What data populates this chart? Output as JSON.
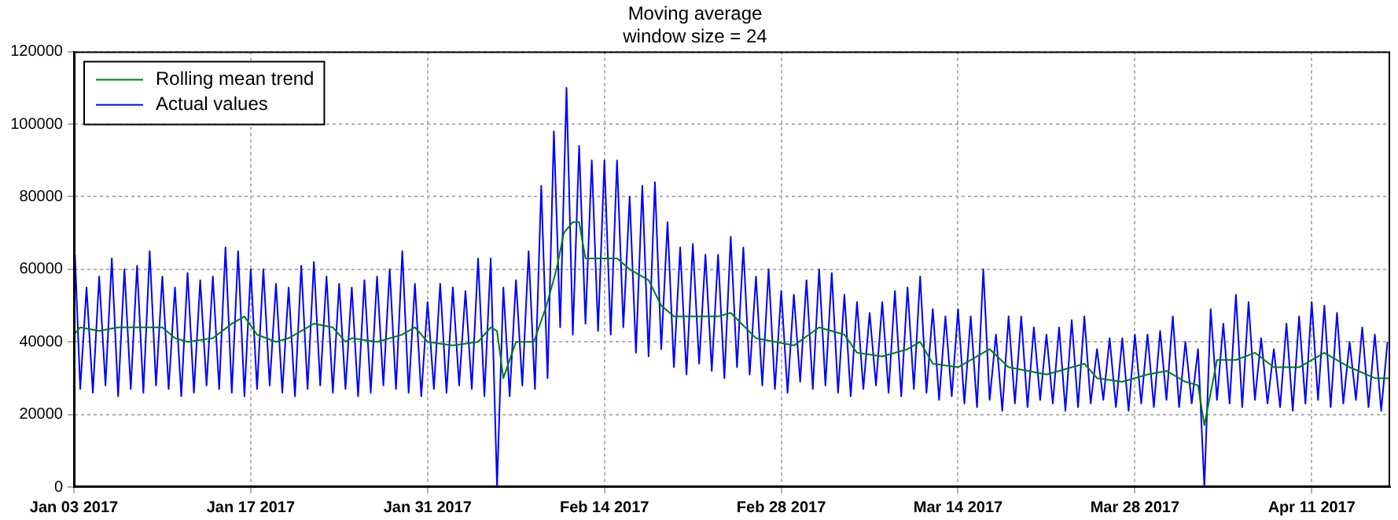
{
  "chart_data": {
    "type": "line",
    "title": "Moving average",
    "subtitle": "window size = 24",
    "xlim": [
      "2017-01-03",
      "2017-04-17T05:00"
    ],
    "xticks": [
      {
        "value": "2017-01-03",
        "label": "Jan 03 2017"
      },
      {
        "value": "2017-01-17",
        "label": "Jan 17 2017"
      },
      {
        "value": "2017-01-31",
        "label": "Jan 31 2017"
      },
      {
        "value": "2017-02-14",
        "label": "Feb 14 2017"
      },
      {
        "value": "2017-02-28",
        "label": "Feb 28 2017"
      },
      {
        "value": "2017-03-14",
        "label": "Mar 14 2017"
      },
      {
        "value": "2017-03-28",
        "label": "Mar 28 2017"
      },
      {
        "value": "2017-04-11",
        "label": "Apr 11 2017"
      }
    ],
    "ylim": [
      0,
      120000
    ],
    "yticks": [
      0,
      20000,
      40000,
      60000,
      80000,
      100000,
      120000
    ],
    "grid": true,
    "legend": "top left",
    "series": [
      {
        "name": "Rolling mean trend",
        "color": "#008000",
        "x": [
          "2017-01-03",
          "2017-01-03T12:00",
          "2017-01-05",
          "2017-01-06T12:00",
          "2017-01-08",
          "2017-01-10",
          "2017-01-11",
          "2017-01-12",
          "2017-01-14",
          "2017-01-15T12:00",
          "2017-01-16T12:00",
          "2017-01-17T12:00",
          "2017-01-19",
          "2017-01-20",
          "2017-01-22",
          "2017-01-23T12:00",
          "2017-01-24T12:00",
          "2017-01-25",
          "2017-01-27",
          "2017-01-29",
          "2017-01-30",
          "2017-01-31",
          "2017-02-02",
          "2017-02-04",
          "2017-02-05",
          "2017-02-05T12:00",
          "2017-02-06",
          "2017-02-07",
          "2017-02-08T10:00",
          "2017-02-09T10:00",
          "2017-02-10T05:00",
          "2017-02-10T19:00",
          "2017-02-11T12:00",
          "2017-02-12",
          "2017-02-12T12:00",
          "2017-02-15",
          "2017-02-16",
          "2017-02-17T12:00",
          "2017-02-18T12:00",
          "2017-02-19T12:00",
          "2017-02-23",
          "2017-02-24",
          "2017-02-26",
          "2017-03-01",
          "2017-03-03",
          "2017-03-05",
          "2017-03-06",
          "2017-03-08",
          "2017-03-10",
          "2017-03-11",
          "2017-03-12",
          "2017-03-14",
          "2017-03-16T12:00",
          "2017-03-18",
          "2017-03-21",
          "2017-03-24",
          "2017-03-25",
          "2017-03-27",
          "2017-03-29",
          "2017-03-30T12:00",
          "2017-04-01",
          "2017-04-02",
          "2017-04-02T12:00",
          "2017-04-03T12:00",
          "2017-04-05",
          "2017-04-06T12:00",
          "2017-04-08",
          "2017-04-10",
          "2017-04-12",
          "2017-04-14",
          "2017-04-16",
          "2017-04-17T04:00"
        ],
        "values": [
          42000,
          44000,
          43000,
          44000,
          44000,
          44000,
          41000,
          40000,
          41000,
          45000,
          47000,
          42000,
          40000,
          41000,
          45000,
          44000,
          40000,
          41000,
          40000,
          42000,
          44000,
          40000,
          39000,
          40000,
          44000,
          43000,
          30000,
          40000,
          40000,
          50000,
          60000,
          70000,
          73000,
          73000,
          63000,
          63000,
          60000,
          57000,
          50000,
          47000,
          47000,
          48000,
          41000,
          39000,
          44000,
          42000,
          37000,
          36000,
          38000,
          40000,
          34000,
          33000,
          38000,
          33000,
          31000,
          34000,
          30000,
          29000,
          31000,
          32000,
          29000,
          28000,
          17000,
          35000,
          35000,
          37000,
          33000,
          33000,
          37000,
          33000,
          30000,
          30000
        ]
      },
      {
        "name": "Actual values",
        "color": "#0000ff",
        "x": [
          "2017-01-03T02:00",
          "2017-01-03T12:00",
          "2017-01-04",
          "2017-01-04T12:00",
          "2017-01-05",
          "2017-01-05T12:00",
          "2017-01-06",
          "2017-01-06T12:00",
          "2017-01-07",
          "2017-01-07T12:00",
          "2017-01-08",
          "2017-01-08T12:00",
          "2017-01-09",
          "2017-01-09T12:00",
          "2017-01-10",
          "2017-01-10T12:00",
          "2017-01-11",
          "2017-01-11T12:00",
          "2017-01-12",
          "2017-01-12T12:00",
          "2017-01-13",
          "2017-01-13T12:00",
          "2017-01-14",
          "2017-01-14T12:00",
          "2017-01-15",
          "2017-01-15T12:00",
          "2017-01-16",
          "2017-01-16T12:00",
          "2017-01-17",
          "2017-01-17T12:00",
          "2017-01-18",
          "2017-01-18T12:00",
          "2017-01-19",
          "2017-01-19T12:00",
          "2017-01-20",
          "2017-01-20T12:00",
          "2017-01-21",
          "2017-01-21T12:00",
          "2017-01-22",
          "2017-01-22T12:00",
          "2017-01-23",
          "2017-01-23T12:00",
          "2017-01-24",
          "2017-01-24T12:00",
          "2017-01-25",
          "2017-01-25T12:00",
          "2017-01-26",
          "2017-01-26T12:00",
          "2017-01-27",
          "2017-01-27T12:00",
          "2017-01-28",
          "2017-01-28T12:00",
          "2017-01-29",
          "2017-01-29T12:00",
          "2017-01-30",
          "2017-01-30T12:00",
          "2017-01-31",
          "2017-01-31T12:00",
          "2017-02-01",
          "2017-02-01T12:00",
          "2017-02-02",
          "2017-02-02T12:00",
          "2017-02-03",
          "2017-02-03T12:00",
          "2017-02-04",
          "2017-02-04T12:00",
          "2017-02-05",
          "2017-02-05T12:00",
          "2017-02-06",
          "2017-02-06T12:00",
          "2017-02-07",
          "2017-02-07T12:00",
          "2017-02-08",
          "2017-02-08T12:00",
          "2017-02-09",
          "2017-02-09T12:00",
          "2017-02-10",
          "2017-02-10T12:00",
          "2017-02-11",
          "2017-02-11T12:00",
          "2017-02-12",
          "2017-02-12T12:00",
          "2017-02-13",
          "2017-02-13T12:00",
          "2017-02-14",
          "2017-02-14T12:00",
          "2017-02-15",
          "2017-02-15T12:00",
          "2017-02-16",
          "2017-02-16T12:00",
          "2017-02-17",
          "2017-02-17T12:00",
          "2017-02-18",
          "2017-02-18T12:00",
          "2017-02-19",
          "2017-02-19T12:00",
          "2017-02-20",
          "2017-02-20T12:00",
          "2017-02-21",
          "2017-02-21T12:00",
          "2017-02-22",
          "2017-02-22T12:00",
          "2017-02-23",
          "2017-02-23T12:00",
          "2017-02-24",
          "2017-02-24T12:00",
          "2017-02-25",
          "2017-02-25T12:00",
          "2017-02-26",
          "2017-02-26T12:00",
          "2017-02-27",
          "2017-02-27T12:00",
          "2017-02-28",
          "2017-02-28T12:00",
          "2017-03-01",
          "2017-03-01T12:00",
          "2017-03-02",
          "2017-03-02T12:00",
          "2017-03-03",
          "2017-03-03T12:00",
          "2017-03-04",
          "2017-03-04T12:00",
          "2017-03-05",
          "2017-03-05T12:00",
          "2017-03-06",
          "2017-03-06T12:00",
          "2017-03-07",
          "2017-03-07T12:00",
          "2017-03-08",
          "2017-03-08T12:00",
          "2017-03-09",
          "2017-03-09T12:00",
          "2017-03-10",
          "2017-03-10T12:00",
          "2017-03-11",
          "2017-03-11T12:00",
          "2017-03-12",
          "2017-03-12T12:00",
          "2017-03-13",
          "2017-03-13T12:00",
          "2017-03-14",
          "2017-03-14T12:00",
          "2017-03-15",
          "2017-03-15T12:00",
          "2017-03-16",
          "2017-03-16T12:00",
          "2017-03-17",
          "2017-03-17T12:00",
          "2017-03-18",
          "2017-03-18T12:00",
          "2017-03-19",
          "2017-03-19T12:00",
          "2017-03-20",
          "2017-03-20T12:00",
          "2017-03-21",
          "2017-03-21T12:00",
          "2017-03-22",
          "2017-03-22T12:00",
          "2017-03-23",
          "2017-03-23T12:00",
          "2017-03-24",
          "2017-03-24T12:00",
          "2017-03-25",
          "2017-03-25T12:00",
          "2017-03-26",
          "2017-03-26T12:00",
          "2017-03-27",
          "2017-03-27T12:00",
          "2017-03-28",
          "2017-03-28T12:00",
          "2017-03-29",
          "2017-03-29T12:00",
          "2017-03-30",
          "2017-03-30T12:00",
          "2017-03-31",
          "2017-03-31T12:00",
          "2017-04-01",
          "2017-04-01T12:00",
          "2017-04-02",
          "2017-04-02T12:00",
          "2017-04-03",
          "2017-04-03T12:00",
          "2017-04-04",
          "2017-04-04T12:00",
          "2017-04-05",
          "2017-04-05T12:00",
          "2017-04-06",
          "2017-04-06T12:00",
          "2017-04-07",
          "2017-04-07T12:00",
          "2017-04-08",
          "2017-04-08T12:00",
          "2017-04-09",
          "2017-04-09T12:00",
          "2017-04-10",
          "2017-04-10T12:00",
          "2017-04-11",
          "2017-04-11T12:00",
          "2017-04-12",
          "2017-04-12T12:00",
          "2017-04-13",
          "2017-04-13T12:00",
          "2017-04-14",
          "2017-04-14T12:00",
          "2017-04-15",
          "2017-04-15T12:00",
          "2017-04-16",
          "2017-04-16T12:00",
          "2017-04-17"
        ],
        "values": [
          64000,
          27000,
          55000,
          26000,
          58000,
          28000,
          63000,
          25000,
          60000,
          27000,
          61000,
          26000,
          65000,
          28000,
          58000,
          27000,
          55000,
          25000,
          59000,
          26000,
          57000,
          28000,
          58000,
          27000,
          66000,
          26000,
          65000,
          25000,
          60000,
          27000,
          60000,
          28000,
          56000,
          26000,
          55000,
          25000,
          61000,
          27000,
          62000,
          28000,
          58000,
          26000,
          56000,
          27000,
          55000,
          25000,
          57000,
          26000,
          58000,
          28000,
          60000,
          27000,
          65000,
          26000,
          56000,
          25000,
          51000,
          27000,
          56000,
          26000,
          55000,
          28000,
          54000,
          27000,
          63000,
          25000,
          63000,
          0,
          55000,
          25000,
          57000,
          28000,
          65000,
          27000,
          83000,
          30000,
          98000,
          44000,
          110000,
          42000,
          94000,
          45000,
          90000,
          43000,
          90000,
          42000,
          90000,
          44000,
          80000,
          37000,
          83000,
          36000,
          84000,
          38000,
          73000,
          33000,
          66000,
          31000,
          67000,
          34000,
          64000,
          32000,
          64000,
          30000,
          69000,
          33000,
          66000,
          31000,
          58000,
          28000,
          60000,
          27000,
          54000,
          26000,
          53000,
          29000,
          57000,
          27000,
          60000,
          28000,
          59000,
          26000,
          53000,
          25000,
          51000,
          27000,
          48000,
          28000,
          51000,
          26000,
          54000,
          25000,
          55000,
          27000,
          58000,
          26000,
          49000,
          24000,
          47000,
          25000,
          49000,
          23000,
          47000,
          22000,
          60000,
          24000,
          42000,
          21000,
          47000,
          23000,
          47000,
          22000,
          44000,
          24000,
          42000,
          23000,
          44000,
          21000,
          46000,
          22000,
          47000,
          23000,
          38000,
          24000,
          41000,
          22000,
          41000,
          21000,
          42000,
          23000,
          42000,
          22000,
          43000,
          24000,
          47000,
          22000,
          40000,
          23000,
          38000,
          0,
          49000,
          24000,
          45000,
          23000,
          53000,
          22000,
          51000,
          24000,
          41000,
          23000,
          38000,
          22000,
          45000,
          21000,
          47000,
          23000,
          51000,
          24000,
          50000,
          22000,
          48000,
          23000,
          40000,
          24000,
          44000,
          22000,
          42000,
          21000,
          40000
        ]
      }
    ]
  }
}
